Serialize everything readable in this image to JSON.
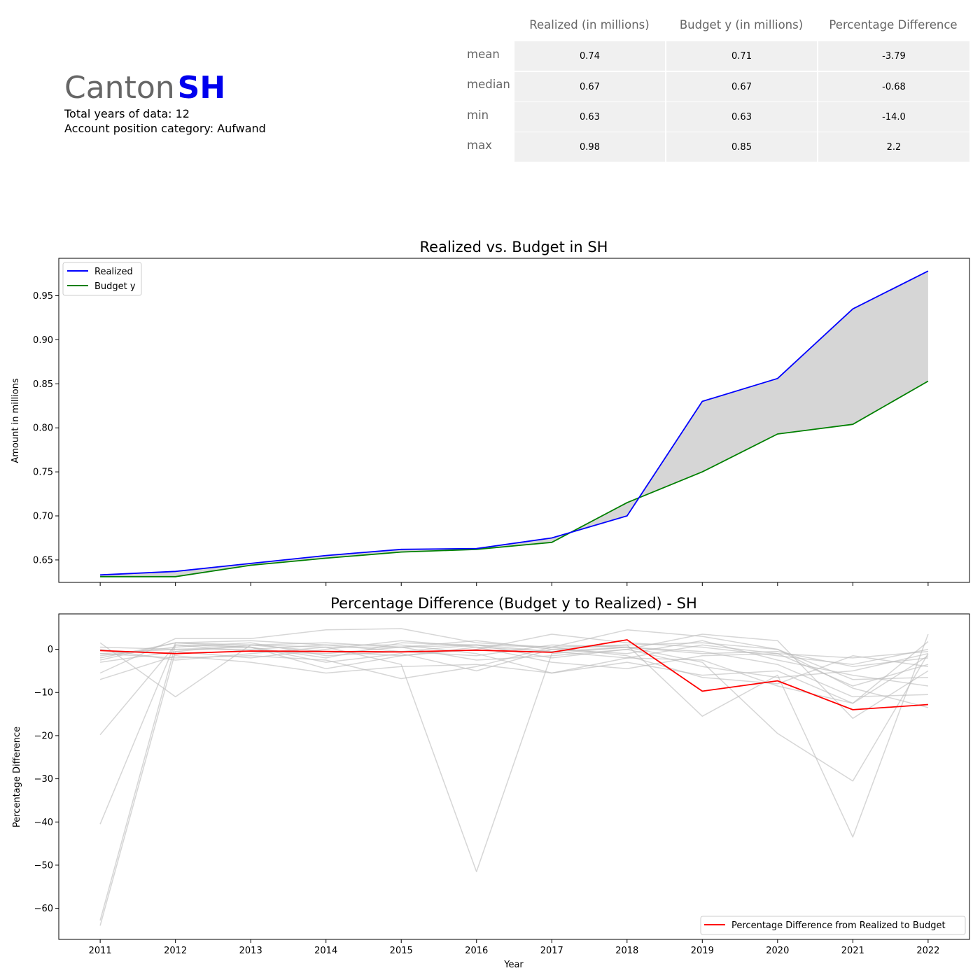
{
  "header": {
    "canton_word": "Canton",
    "canton_code": "SH",
    "years_line": "Total years of data: 12",
    "category_line": "Account position category: Aufwand"
  },
  "stats_table": {
    "columns": [
      "Realized (in millions)",
      "Budget y (in millions)",
      "Percentage Difference"
    ],
    "rows": [
      {
        "label": "mean",
        "values": [
          "0.74",
          "0.71",
          "-3.79"
        ]
      },
      {
        "label": "median",
        "values": [
          "0.67",
          "0.67",
          "-0.68"
        ]
      },
      {
        "label": "min",
        "values": [
          "0.63",
          "0.63",
          "-14.0"
        ]
      },
      {
        "label": "max",
        "values": [
          "0.98",
          "0.85",
          "2.2"
        ]
      }
    ]
  },
  "colors": {
    "realized": "#0000ff",
    "budget": "#008000",
    "fill": "#d6d6d6",
    "pct": "#ff0000",
    "background_lines": "#bbbbbb",
    "accent": "#0000ee"
  },
  "chart_data": [
    {
      "type": "line",
      "title": "Realized vs. Budget in SH",
      "xlabel": "",
      "ylabel": "Amount in millions",
      "x": [
        2011,
        2012,
        2013,
        2014,
        2015,
        2016,
        2017,
        2018,
        2019,
        2020,
        2021,
        2022
      ],
      "xlim": [
        2010.45,
        2022.55
      ],
      "ylim": [
        0.6245,
        0.9925
      ],
      "yticks": [
        0.65,
        0.7,
        0.75,
        0.8,
        0.85,
        0.9,
        0.95
      ],
      "ytick_labels": [
        "0.65",
        "0.70",
        "0.75",
        "0.80",
        "0.85",
        "0.90",
        "0.95"
      ],
      "fill_between": true,
      "legend": "top-left",
      "series": [
        {
          "name": "Realized",
          "values": [
            0.633,
            0.637,
            0.646,
            0.655,
            0.662,
            0.663,
            0.675,
            0.7,
            0.83,
            0.856,
            0.935,
            0.978
          ]
        },
        {
          "name": "Budget y",
          "values": [
            0.631,
            0.631,
            0.644,
            0.652,
            0.659,
            0.662,
            0.67,
            0.715,
            0.75,
            0.793,
            0.804,
            0.853
          ]
        }
      ]
    },
    {
      "type": "line",
      "title": "Percentage Difference (Budget y to Realized) - SH",
      "xlabel": "Year",
      "ylabel": "Percentage Difference",
      "x": [
        2011,
        2012,
        2013,
        2014,
        2015,
        2016,
        2017,
        2018,
        2019,
        2020,
        2021,
        2022
      ],
      "xtick_labels": [
        "2011",
        "2012",
        "2013",
        "2014",
        "2015",
        "2016",
        "2017",
        "2018",
        "2019",
        "2020",
        "2021",
        "2022"
      ],
      "xlim": [
        2010.45,
        2022.55
      ],
      "ylim": [
        -67.2,
        8.2
      ],
      "yticks": [
        0,
        -10,
        -20,
        -30,
        -40,
        -50,
        -60
      ],
      "ytick_labels": [
        "0",
        "−10",
        "−20",
        "−30",
        "−40",
        "−50",
        "−60"
      ],
      "legend": "bottom-right",
      "series": [
        {
          "name": "Percentage Difference from Realized to Budget",
          "values": [
            -0.3,
            -1.0,
            -0.4,
            -0.5,
            -0.6,
            -0.2,
            -0.7,
            2.2,
            -9.7,
            -7.3,
            -14.0,
            -12.8
          ]
        }
      ],
      "background_series": [
        [
          1.5,
          -11.0,
          1.0,
          1.5,
          0.5,
          1.0,
          0.5,
          1.0,
          -15.5,
          -6.0,
          -43.5,
          3.5
        ],
        [
          -2.0,
          1.5,
          1.0,
          0.5,
          -3.5,
          -51.5,
          -1.0,
          0.5,
          -3.0,
          -19.5,
          -30.5,
          -1.0
        ],
        [
          -19.8,
          1.0,
          0.5,
          -2.0,
          1.5,
          1.0,
          -2.0,
          0.0,
          3.5,
          2.0,
          -16.0,
          -5.0
        ],
        [
          -40.5,
          1.5,
          2.0,
          1.0,
          1.0,
          -1.0,
          -5.5,
          -2.0,
          -2.5,
          -8.5,
          -12.5,
          -1.5
        ],
        [
          -62.8,
          1.0,
          -0.5,
          -1.0,
          0.5,
          2.0,
          0.0,
          1.0,
          1.5,
          0.0,
          -7.0,
          -6.5
        ],
        [
          -64.0,
          -0.5,
          1.0,
          -0.5,
          -1.5,
          0.0,
          3.5,
          1.5,
          0.5,
          -1.5,
          -3.5,
          0.0
        ],
        [
          -5.5,
          2.5,
          2.5,
          4.5,
          4.8,
          1.5,
          0.5,
          4.5,
          3.0,
          0.0,
          -9.0,
          -13.5
        ],
        [
          -7.0,
          -1.5,
          -3.0,
          -5.5,
          -4.0,
          -3.5,
          -5.5,
          -3.0,
          -6.0,
          -5.0,
          -12.5,
          1.8
        ],
        [
          -1.0,
          -2.0,
          -1.5,
          -2.5,
          -6.8,
          -4.0,
          0.5,
          -1.5,
          -6.5,
          -8.0,
          -1.5,
          -4.0
        ],
        [
          0.5,
          0.0,
          0.0,
          1.0,
          -0.5,
          -1.5,
          1.0,
          0.5,
          -1.0,
          -0.5,
          -4.0,
          -2.0
        ],
        [
          -2.5,
          1.5,
          0.5,
          -3.0,
          -1.0,
          -5.0,
          0.0,
          -1.0,
          2.0,
          -2.5,
          -6.0,
          -8.5
        ],
        [
          -3.0,
          -0.5,
          -2.0,
          0.0,
          2.0,
          0.5,
          -3.0,
          -4.5,
          -1.5,
          -1.0,
          -8.5,
          -3.5
        ],
        [
          -1.5,
          0.5,
          1.5,
          -1.5,
          -0.5,
          1.0,
          -0.5,
          0.5,
          -0.5,
          -3.5,
          -11.0,
          -10.5
        ],
        [
          0.0,
          -2.5,
          -1.0,
          0.5,
          0.5,
          -2.5,
          -1.5,
          0.0,
          -4.0,
          -6.5,
          -5.0,
          -1.0
        ],
        [
          -1.0,
          0.0,
          0.5,
          -4.5,
          -1.5,
          0.5,
          -0.5,
          -2.0,
          1.0,
          -1.0,
          -2.0,
          -0.5
        ]
      ]
    }
  ]
}
